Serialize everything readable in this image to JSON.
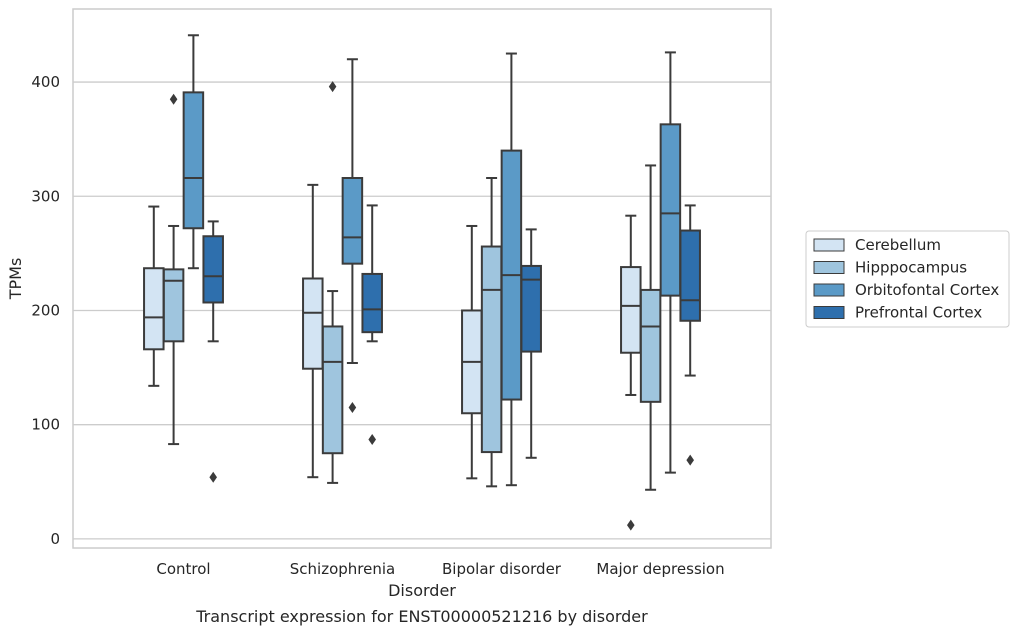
{
  "chart_data": {
    "type": "box",
    "categories": [
      "Control",
      "Schizophrenia",
      "Bipolar disorder",
      "Major depression"
    ],
    "xlabel": "Disorder",
    "ylabel": "TPMs",
    "ylim": [
      -8,
      464
    ],
    "yticks": [
      0,
      100,
      200,
      300,
      400
    ],
    "grid": true,
    "legend_position": "right",
    "caption": "Transcript expression for ENST00000521216 by disorder",
    "series": [
      {
        "name": "Cerebellum",
        "color": "#d3e4f3",
        "boxes": [
          {
            "min": 134,
            "q1": 166,
            "median": 194,
            "q3": 237,
            "max": 291,
            "outliers": []
          },
          {
            "min": 54,
            "q1": 149,
            "median": 198,
            "q3": 228,
            "max": 310,
            "outliers": []
          },
          {
            "min": 53,
            "q1": 110,
            "median": 155,
            "q3": 200,
            "max": 274,
            "outliers": []
          },
          {
            "min": 126,
            "q1": 163,
            "median": 204,
            "q3": 238,
            "max": 283,
            "outliers": [
              12
            ]
          }
        ]
      },
      {
        "name": "Hipppocampus",
        "color": "#9fc5de",
        "boxes": [
          {
            "min": 83,
            "q1": 173,
            "median": 226,
            "q3": 236,
            "max": 274,
            "outliers": [
              385
            ]
          },
          {
            "min": 49,
            "q1": 75,
            "median": 155,
            "q3": 186,
            "max": 217,
            "outliers": [
              396
            ]
          },
          {
            "min": 46,
            "q1": 76,
            "median": 218,
            "q3": 256,
            "max": 316,
            "outliers": []
          },
          {
            "min": 43,
            "q1": 120,
            "median": 186,
            "q3": 218,
            "max": 327,
            "outliers": []
          }
        ]
      },
      {
        "name": "Orbitofontal Cortex",
        "color": "#5b9ac7",
        "boxes": [
          {
            "min": 237,
            "q1": 272,
            "median": 316,
            "q3": 391,
            "max": 441,
            "outliers": []
          },
          {
            "min": 154,
            "q1": 241,
            "median": 264,
            "q3": 316,
            "max": 420,
            "outliers": [
              115
            ]
          },
          {
            "min": 47,
            "q1": 122,
            "median": 231,
            "q3": 340,
            "max": 425,
            "outliers": []
          },
          {
            "min": 58,
            "q1": 213,
            "median": 285,
            "q3": 363,
            "max": 426,
            "outliers": []
          }
        ]
      },
      {
        "name": "Prefrontal Cortex",
        "color": "#2e6fad",
        "boxes": [
          {
            "min": 173,
            "q1": 207,
            "median": 230,
            "q3": 265,
            "max": 278,
            "outliers": [
              54
            ]
          },
          {
            "min": 173,
            "q1": 181,
            "median": 201,
            "q3": 232,
            "max": 292,
            "outliers": [
              87
            ]
          },
          {
            "min": 71,
            "q1": 164,
            "median": 227,
            "q3": 239,
            "max": 271,
            "outliers": []
          },
          {
            "min": 143,
            "q1": 191,
            "median": 209,
            "q3": 270,
            "max": 292,
            "outliers": [
              69
            ]
          }
        ]
      }
    ]
  }
}
